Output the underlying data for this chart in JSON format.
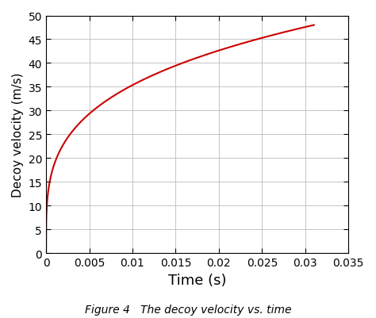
{
  "title": "",
  "xlabel": "Time (s)",
  "ylabel": "Decoy velocity (m/s)",
  "caption": "Figure 4   The decoy velocity vs. time",
  "xlim": [
    0,
    0.035
  ],
  "ylim": [
    0,
    50
  ],
  "xticks": [
    0,
    0.005,
    0.01,
    0.015,
    0.02,
    0.025,
    0.03,
    0.035
  ],
  "yticks": [
    0,
    5,
    10,
    15,
    20,
    25,
    30,
    35,
    40,
    45,
    50
  ],
  "line_color": "#cc0000",
  "line_width": 1.5,
  "t_max": 0.031,
  "v_max": 48.0,
  "curve_shape": 0.27,
  "background_color": "#ffffff",
  "grid_color": "#bbbbbb",
  "figsize": [
    4.74,
    4.02
  ],
  "dpi": 100,
  "xlabel_fontsize": 13,
  "ylabel_fontsize": 11,
  "tick_fontsize": 10,
  "caption_fontsize": 10
}
